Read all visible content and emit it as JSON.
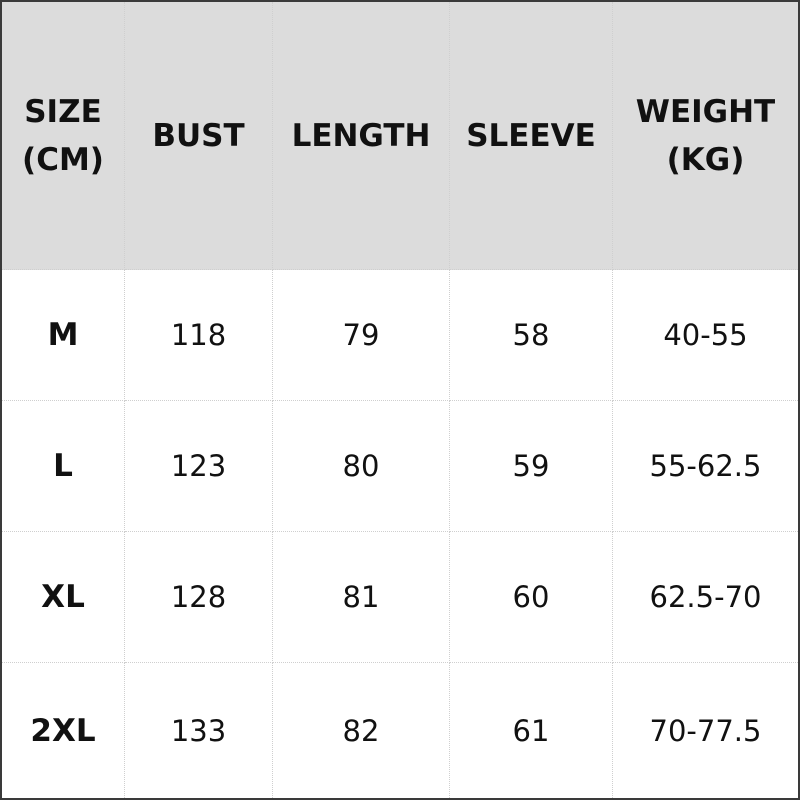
{
  "table": {
    "header": [
      [
        "SIZE",
        "(CM)"
      ],
      [
        "BUST"
      ],
      [
        "LENGTH"
      ],
      [
        "SLEEVE"
      ],
      [
        "WEIGHT",
        "(KG)"
      ]
    ],
    "rows": [
      [
        "M",
        "118",
        "79",
        "58",
        "40-55"
      ],
      [
        "L",
        "123",
        "80",
        "59",
        "55-62.5"
      ],
      [
        "XL",
        "128",
        "81",
        "60",
        "62.5-70"
      ],
      [
        "2XL",
        "133",
        "82",
        "61",
        "70-77.5"
      ]
    ]
  }
}
